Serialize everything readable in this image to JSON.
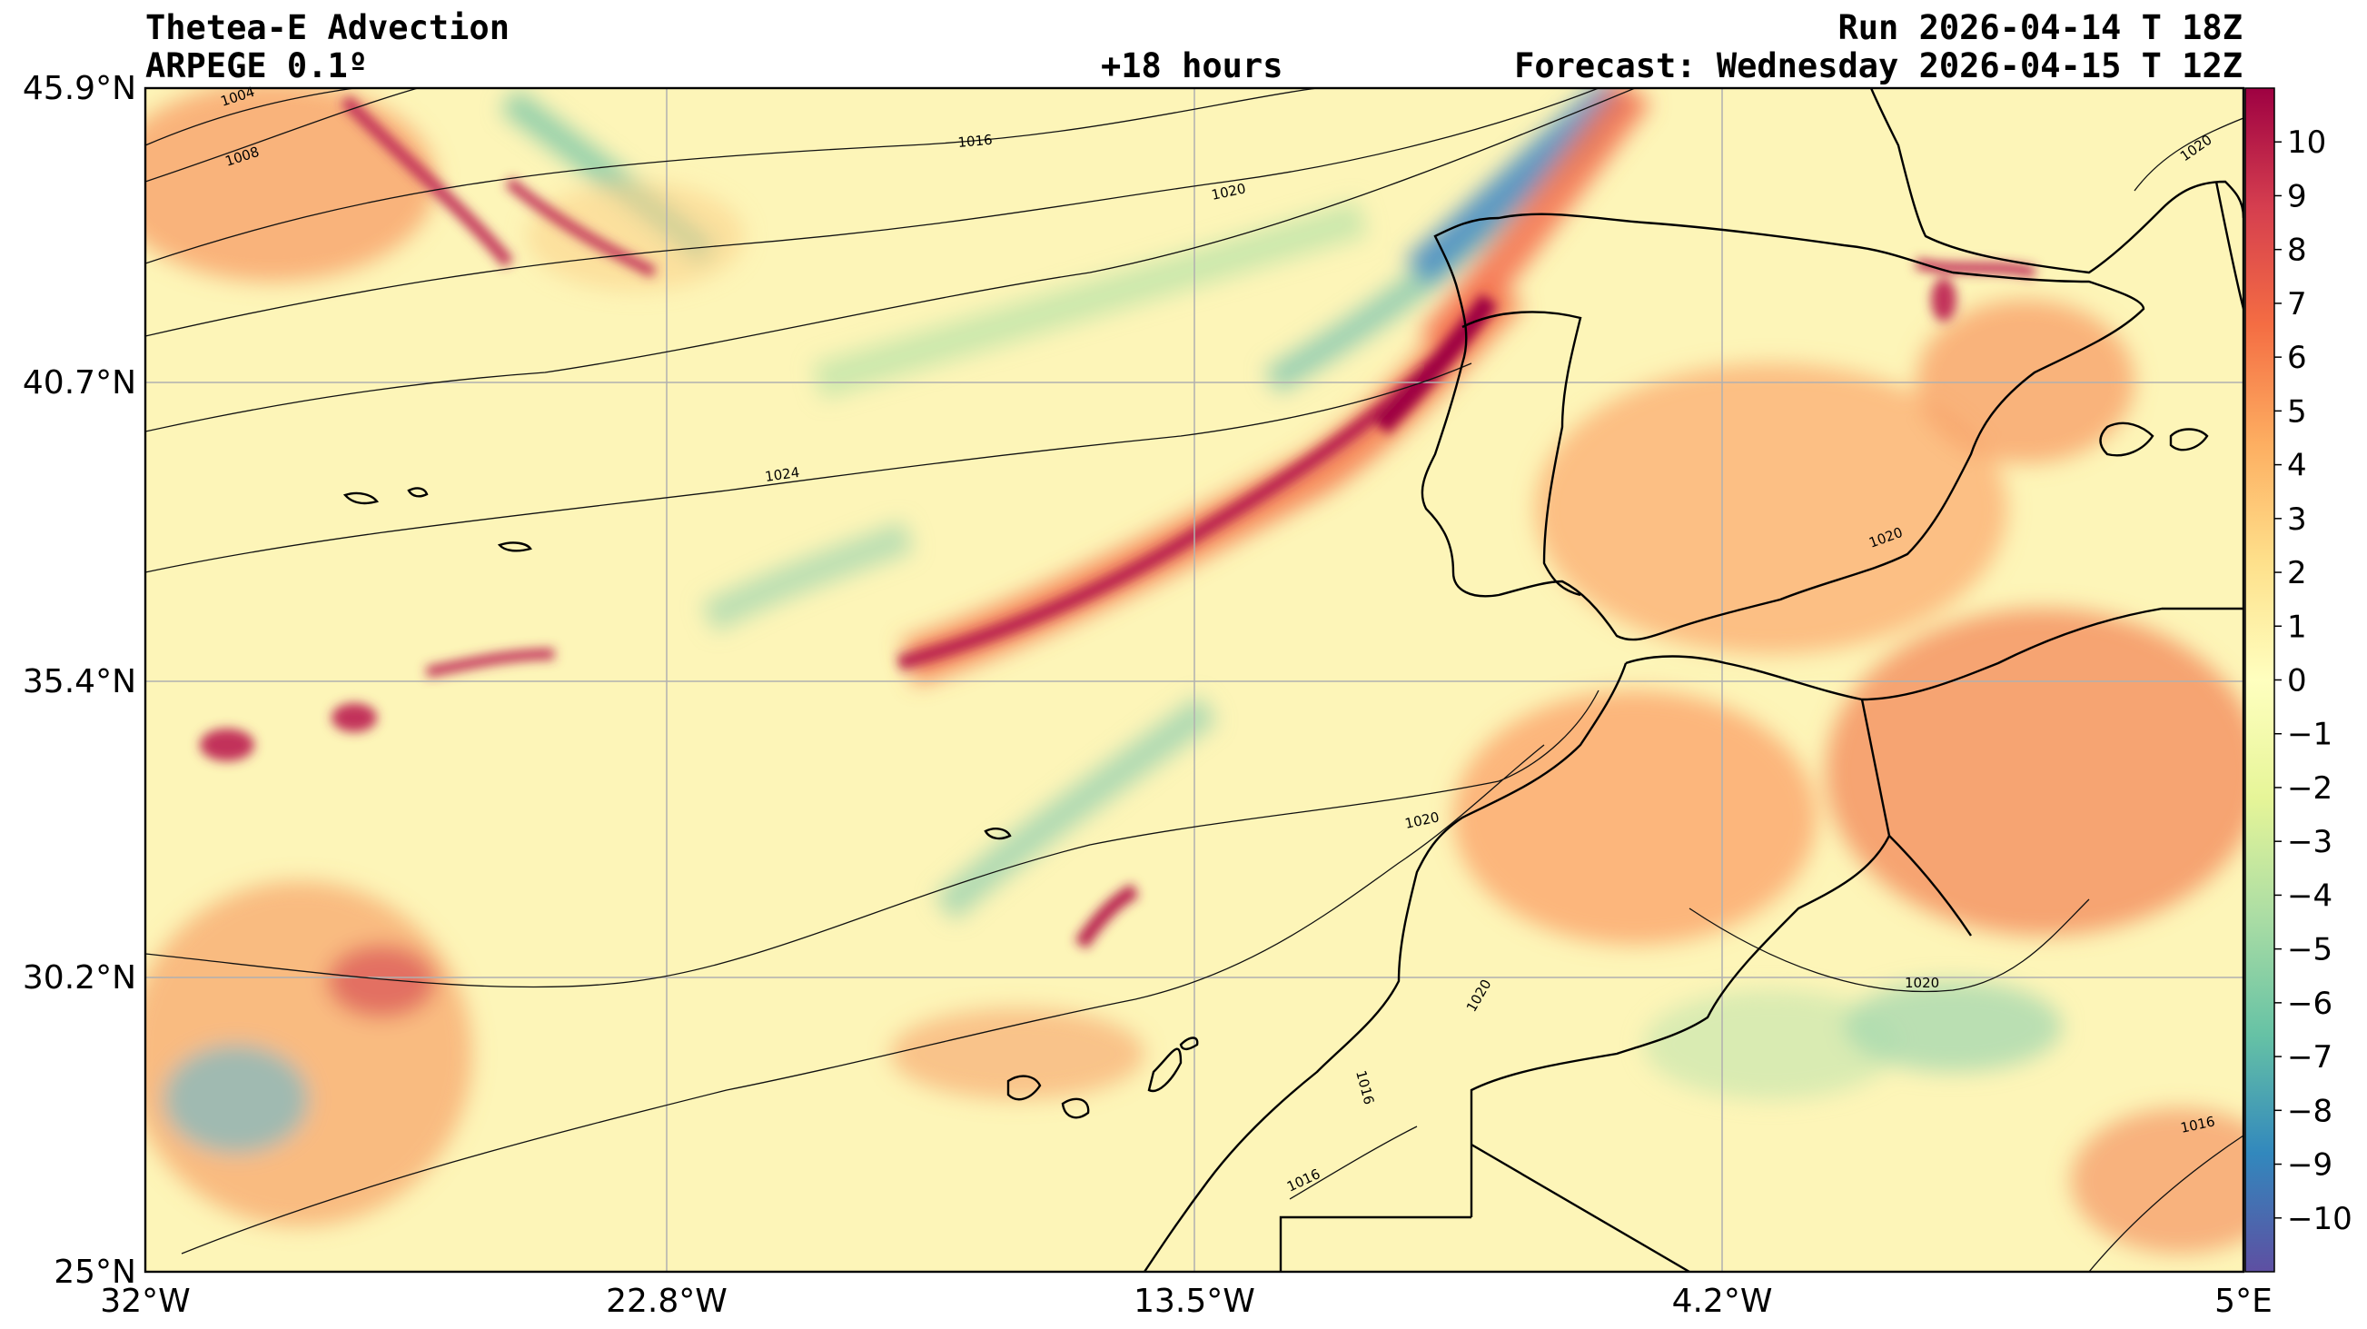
{
  "header": {
    "title": "Thetea-E Advection",
    "model": "ARPEGE 0.1º",
    "lead": "+18 hours",
    "run": "Run 2026-04-14 T 18Z",
    "forecast": "Forecast: Wednesday 2026-04-15 T 12Z"
  },
  "axes": {
    "lat_labels": [
      "45.9°N",
      "40.7°N",
      "35.4°N",
      "30.2°N",
      "25°N"
    ],
    "lon_labels": [
      "32°W",
      "22.8°W",
      "13.5°W",
      "4.2°W",
      "5°E"
    ],
    "lat_range": [
      25,
      45.9
    ],
    "lon_range": [
      -32,
      5
    ]
  },
  "colorbar": {
    "ticks": [
      "10",
      "9",
      "8",
      "7",
      "6",
      "5",
      "4",
      "3",
      "2",
      "1",
      "0",
      "−1",
      "−2",
      "−3",
      "−4",
      "−5",
      "−6",
      "−7",
      "−8",
      "−9",
      "−10"
    ],
    "range": [
      -11,
      11
    ]
  },
  "isobar_labels": [
    {
      "text": "1004"
    },
    {
      "text": "1008"
    },
    {
      "text": "1016"
    },
    {
      "text": "1020"
    },
    {
      "text": "1024"
    },
    {
      "text": "1020"
    },
    {
      "text": "1020"
    },
    {
      "text": "1020"
    },
    {
      "text": "1020"
    },
    {
      "text": "1016"
    },
    {
      "text": "1016"
    },
    {
      "text": "1016"
    },
    {
      "text": "1020"
    }
  ],
  "colors": {
    "strong_positive": "#9e0142",
    "positive": "#f46d43",
    "neutral": "#ffffbf",
    "negative": "#66c2a5",
    "strong_negative": "#5e4fa2"
  }
}
